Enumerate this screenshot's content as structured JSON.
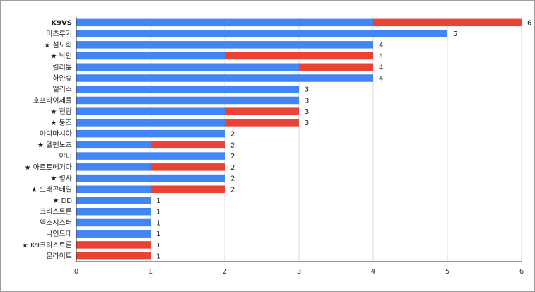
{
  "chart_data": {
    "type": "bar",
    "orientation": "horizontal",
    "stacked": true,
    "categories": [
      "K9VS",
      "미츠루기",
      "★ 섬도희",
      "★ 낙인",
      "킬러튠",
      "하얀숲",
      "맬리스",
      "호프라이제울",
      "★ 현람",
      "★ 둥즈",
      "아다마시아",
      "★ 엘펜노츠",
      "야미",
      "★ 아르토메기아",
      "★ 령사",
      "★ 드래곤테일",
      "★ DD",
      "크리스트론",
      "엑소시스터",
      "낙인드테",
      "★ K9크리스트론",
      "문라이트"
    ],
    "series": [
      {
        "color": "#4285f4",
        "values": [
          4,
          5,
          4,
          2,
          3,
          4,
          3,
          3,
          2,
          2,
          2,
          1,
          2,
          1,
          2,
          1,
          1,
          1,
          1,
          1,
          0,
          0
        ]
      },
      {
        "color": "#ea4335",
        "values": [
          2,
          0,
          0,
          2,
          1,
          0,
          0,
          0,
          1,
          1,
          0,
          1,
          0,
          1,
          0,
          1,
          0,
          0,
          0,
          0,
          1,
          1
        ]
      }
    ],
    "totals": [
      "6",
      "5",
      "4",
      "4",
      "4",
      "4",
      "3",
      "3",
      "3",
      "3",
      "2",
      "2",
      "2",
      "2",
      "2",
      "2",
      "1",
      "1",
      "1",
      "1",
      "1",
      "1"
    ],
    "x_ticks": [
      "0",
      "1",
      "2",
      "3",
      "4",
      "5",
      "6"
    ],
    "xlim": [
      0,
      6
    ],
    "grid": true,
    "legend": "none"
  }
}
